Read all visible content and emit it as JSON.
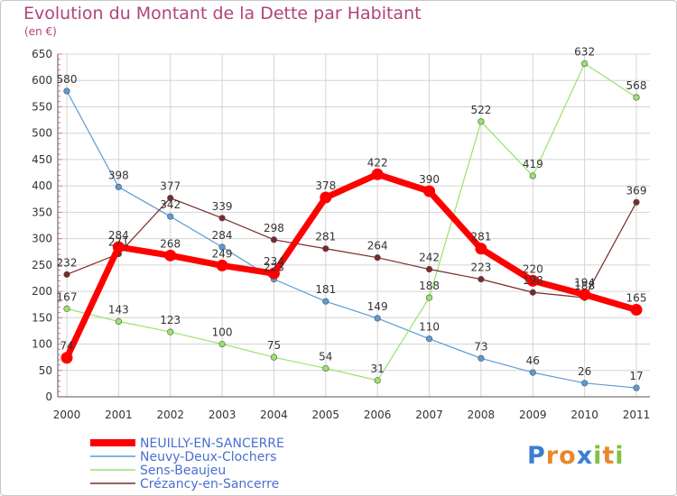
{
  "chart_data": {
    "type": "line",
    "title": "Evolution du Montant de la Dette par Habitant",
    "subtitle": "(en €)",
    "xlabel": "",
    "ylabel": "",
    "x": [
      "2000",
      "2001",
      "2002",
      "2003",
      "2004",
      "2005",
      "2006",
      "2007",
      "2008",
      "2009",
      "2010",
      "2011"
    ],
    "ylim": [
      0,
      650
    ],
    "yticks": [
      0,
      50,
      100,
      150,
      200,
      250,
      300,
      350,
      400,
      450,
      500,
      550,
      600,
      650
    ],
    "grid": true,
    "legend_position": "bottom-left",
    "series": [
      {
        "name": "NEUILLY-EN-SANCERRE",
        "color": "#ff0000",
        "values": [
          74,
          284,
          268,
          249,
          234,
          378,
          422,
          390,
          281,
          220,
          194,
          165
        ]
      },
      {
        "name": "Neuvy-Deux-Clochers",
        "color": "#5b9bd5",
        "values": [
          580,
          398,
          342,
          284,
          223,
          181,
          149,
          110,
          73,
          46,
          26,
          17
        ]
      },
      {
        "name": "Sens-Beaujeu",
        "color": "#99e36b",
        "values": [
          167,
          143,
          123,
          100,
          75,
          54,
          31,
          188,
          522,
          419,
          632,
          568
        ]
      },
      {
        "name": "Crézancy-en-Sancerre",
        "color": "#7a2a2a",
        "values": [
          232,
          271,
          377,
          339,
          298,
          281,
          264,
          242,
          223,
          198,
          188,
          369
        ]
      }
    ]
  },
  "logo": {
    "letters": [
      "P",
      "r",
      "o",
      "x",
      "i",
      "t",
      "i"
    ],
    "colors": [
      "#3a7fd0",
      "#e8882a",
      "#e8882a",
      "#3a7fd0",
      "#7fc242",
      "#e8882a",
      "#7fc242"
    ]
  }
}
